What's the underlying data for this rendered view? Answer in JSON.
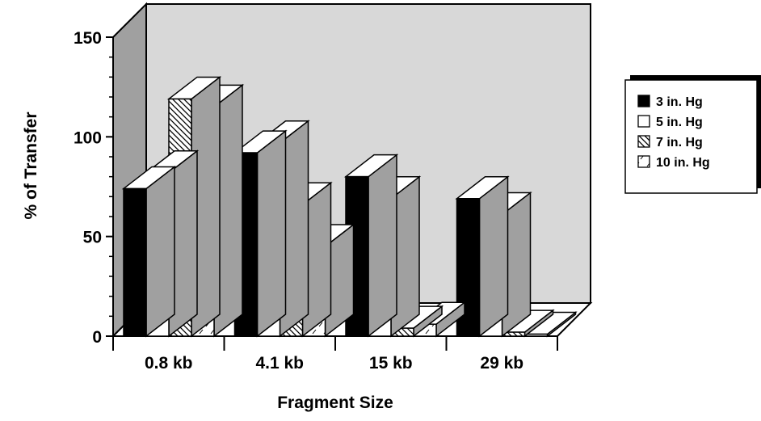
{
  "chart_data": {
    "type": "bar",
    "title": "",
    "xlabel": "Fragment Size",
    "ylabel": "% of Transfer",
    "ylim": [
      0,
      150
    ],
    "yticks": [
      "0",
      "50",
      "100",
      "150"
    ],
    "categories": [
      "0.8 kb",
      "4.1 kb",
      "15 kb",
      "29 kb"
    ],
    "series": [
      {
        "name": "3 in. Hg",
        "values": [
          74,
          92,
          80,
          69
        ],
        "pattern": "solid"
      },
      {
        "name": "5 in. Hg",
        "values": [
          82,
          97,
          69,
          61
        ],
        "pattern": "open"
      },
      {
        "name": "7 in. Hg",
        "values": [
          119,
          66,
          4,
          2
        ],
        "pattern": "diagonal-hatch"
      },
      {
        "name": "10 in. Hg",
        "values": [
          115,
          45,
          6,
          1
        ],
        "pattern": "dashed-fill"
      }
    ],
    "grid": false,
    "legend_position": "right",
    "style": "3d",
    "colors": {
      "bar_fill": "#000000",
      "bar_side": "#a0a0a0",
      "wall": "#d8d8d8",
      "side_wall": "#a0a0a0",
      "floor": "#ffffff"
    }
  }
}
